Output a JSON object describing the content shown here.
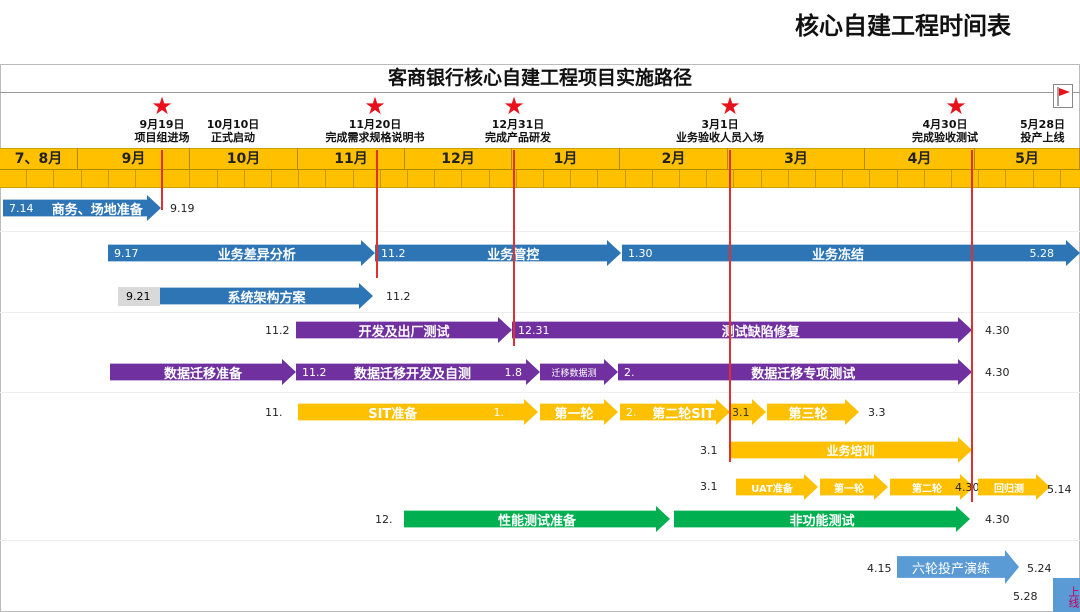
{
  "page_title": "核心自建工程时间表",
  "chart_title": "客商银行核心自建工程项目实施路径",
  "milestones": [
    {
      "date": "9月19日",
      "text": "项目组进场",
      "star": true
    },
    {
      "date": "10月10日",
      "text": "正式启动",
      "star": false
    },
    {
      "date": "11月20日",
      "text": "完成需求规格说明书",
      "star": true
    },
    {
      "date": "12月31日",
      "text": "完成产品研发",
      "star": true
    },
    {
      "date": "3月1日",
      "text": "业务验收人员入场",
      "star": true
    },
    {
      "date": "4月30日",
      "text": "完成验收测试",
      "star": true
    },
    {
      "date": "5月28日",
      "text": "投产上线",
      "star": false,
      "icon": "flag-icon"
    }
  ],
  "months": [
    "7、8月",
    "9月",
    "10月",
    "11月",
    "12月",
    "1月",
    "2月",
    "3月",
    "4月",
    "5月"
  ],
  "rows": {
    "r1": {
      "start": "7.14",
      "bar": "商务、场地准备",
      "end": "9.19"
    },
    "r2": {
      "b1s": "9.17",
      "b1": "业务差异分析",
      "b2s": "11.2",
      "b2": "业务管控",
      "b3s": "1.30",
      "b3": "业务冻结",
      "b3e": "5.28"
    },
    "r3": {
      "start": "9.21",
      "bar": "系统架构方案",
      "end": "11.2"
    },
    "r4": {
      "start": "11.2",
      "b1": "开发及出厂测试",
      "b2s": "12.31",
      "b2": "测试缺陷修复",
      "end": "4.30"
    },
    "r5": {
      "b1": "数据迁移准备",
      "b2s": "11.2",
      "b2": "数据迁移开发及自测",
      "b2e": "1.8",
      "b3": "迁移数据测",
      "b4s": "2.",
      "b4": "数据迁移专项测试",
      "end": "4.30"
    },
    "r6": {
      "start": "11.",
      "b1": "SIT准备",
      "b1e": "1.",
      "b2": "第一轮",
      "b3s": "2.",
      "b3": "第二轮SIT",
      "b4": "3.1",
      "b5": "第三轮",
      "end": "3.3"
    },
    "r7": {
      "start": "3.1",
      "bar": "业务培训"
    },
    "r8": {
      "start": "3.1",
      "b1": "UAT准备",
      "b2": "第一轮",
      "b3": "第二轮",
      "mid": "4.30",
      "b4": "回归测",
      "end": "5.14"
    },
    "r9": {
      "start": "12.",
      "b1": "性能测试准备",
      "b2": "非功能测试",
      "end": "4.30"
    },
    "r10": {
      "start": "4.15",
      "bar": "六轮投产演练",
      "end": "5.24",
      "golive_date": "5.28",
      "golive": "上线"
    }
  },
  "colors": {
    "business": "#2e75b6",
    "development": "#7030a0",
    "testing": "#ffc000",
    "performance": "#00b050",
    "milestone": "#e8101a",
    "timeline": "#ffc000"
  }
}
